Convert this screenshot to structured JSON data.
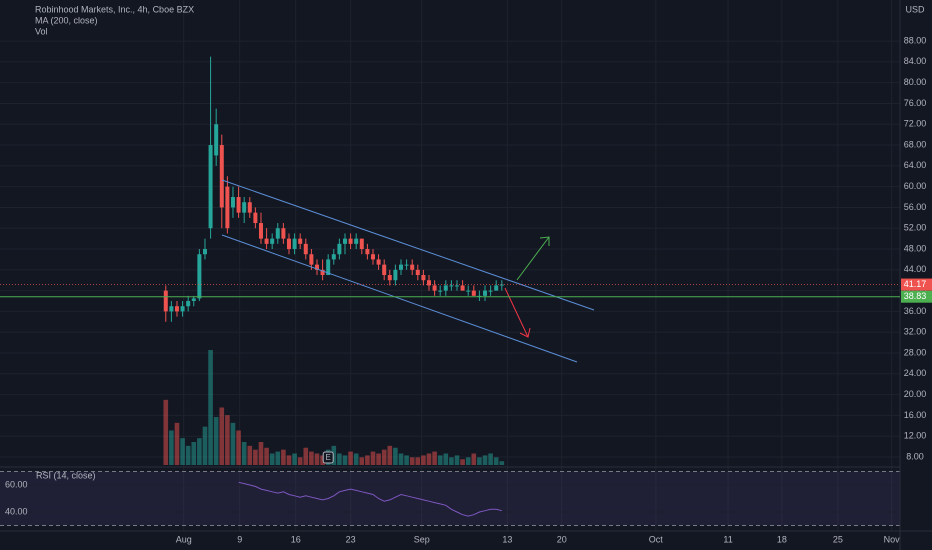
{
  "header": {
    "title": "Robinhood Markets, Inc., 4h, Cboe BZX",
    "indicator": "MA (200, close)",
    "volume_label": "Vol",
    "currency": "USD"
  },
  "chart_data": {
    "type": "candlestick",
    "x": [
      0,
      1,
      2,
      3,
      4,
      5,
      6,
      7,
      8,
      9,
      10,
      11,
      12,
      13,
      14,
      15,
      16,
      17,
      18,
      19,
      20,
      21,
      22,
      23,
      24,
      25,
      26,
      27,
      28,
      29,
      30,
      31,
      32,
      33,
      34,
      35,
      36,
      37,
      38,
      39,
      40,
      41,
      42,
      43,
      44,
      45,
      46,
      47,
      48,
      49,
      50,
      51,
      52,
      53,
      54,
      55,
      56,
      57,
      58,
      59,
      60
    ],
    "open": [
      40,
      36,
      37,
      36,
      37,
      38,
      38.5,
      47,
      52,
      66,
      68,
      60,
      56,
      58,
      55,
      57,
      55,
      53,
      50,
      49,
      50,
      52,
      50,
      48,
      50,
      49,
      47,
      45,
      44,
      43,
      46,
      47,
      49,
      50,
      49,
      50,
      48,
      47,
      46,
      45,
      43,
      42,
      44,
      45,
      45,
      44,
      43,
      42,
      41,
      40,
      40,
      41,
      41,
      41,
      40,
      40,
      39,
      39,
      40,
      40,
      41
    ],
    "high": [
      41,
      38,
      38,
      38,
      39,
      39,
      48,
      50,
      85,
      75,
      70,
      62,
      60,
      60,
      58,
      58,
      56,
      55,
      52,
      51,
      53,
      53,
      51,
      51,
      51,
      50,
      48,
      46,
      46,
      47,
      48,
      50,
      51,
      51,
      51,
      50,
      49,
      48,
      47,
      46,
      44,
      45,
      46,
      46,
      46,
      45,
      44,
      43,
      42,
      41,
      42,
      42,
      42,
      42,
      41,
      41,
      40,
      41,
      41,
      42,
      42
    ],
    "low": [
      34,
      34,
      35,
      35,
      36,
      37,
      38,
      46,
      50,
      64,
      52,
      51,
      54,
      54,
      53,
      54,
      52,
      49,
      48,
      48,
      49,
      49,
      47,
      47,
      48,
      46,
      44,
      43,
      42,
      43,
      45,
      46,
      47,
      48,
      48,
      47,
      46,
      45,
      44,
      42,
      41,
      41,
      43,
      44,
      43,
      42,
      41,
      40,
      39,
      39,
      39,
      40,
      40,
      40,
      39,
      39,
      38,
      38,
      39,
      40,
      40
    ],
    "close": [
      36,
      37,
      36,
      37,
      38,
      38.5,
      47,
      48,
      68,
      72,
      56,
      52,
      58,
      55,
      57,
      55,
      53,
      50,
      49,
      50,
      52,
      50,
      48,
      50,
      49,
      47,
      45,
      44,
      43,
      46,
      47,
      49,
      50,
      49,
      50,
      48,
      47,
      46,
      45,
      43,
      42,
      44,
      45,
      45,
      44,
      43,
      42,
      41,
      40,
      40,
      41,
      41,
      41,
      40,
      40,
      39,
      39,
      40,
      40,
      41,
      41.17
    ],
    "volume": [
      34,
      18,
      22,
      14,
      10,
      12,
      14,
      20,
      60,
      25,
      30,
      26,
      22,
      18,
      12,
      10,
      8,
      12,
      9,
      6,
      7,
      8,
      5,
      6,
      4,
      9,
      7,
      6,
      5,
      8,
      10,
      6,
      5,
      7,
      6,
      4,
      5,
      7,
      6,
      8,
      10,
      9,
      6,
      5,
      4,
      4,
      5,
      6,
      7,
      5,
      6,
      4,
      5,
      3,
      4,
      6,
      4,
      5,
      6,
      4,
      2
    ],
    "up_color": "#26a69a",
    "down_color": "#ef5350",
    "xlim": [
      -29.6,
      131.1
    ],
    "xticks": [
      {
        "value": 3.2,
        "label": "Aug"
      },
      {
        "value": 13.2,
        "label": "9"
      },
      {
        "value": 23.2,
        "label": "16"
      },
      {
        "value": 33,
        "label": "23"
      },
      {
        "value": 45.7,
        "label": "Sep"
      },
      {
        "value": 61,
        "label": "13"
      },
      {
        "value": 70.7,
        "label": "20"
      },
      {
        "value": 87.5,
        "label": "Oct"
      },
      {
        "value": 100.4,
        "label": "11"
      },
      {
        "value": 110,
        "label": "18"
      },
      {
        "value": 120,
        "label": "25"
      },
      {
        "value": 129.6,
        "label": "Nov"
      }
    ],
    "ylim": [
      6.46,
      95.9
    ],
    "yticks": [
      {
        "value": 8,
        "label": "8.00"
      },
      {
        "value": 12,
        "label": "12.00"
      },
      {
        "value": 16,
        "label": "16.00"
      },
      {
        "value": 20,
        "label": "20.00"
      },
      {
        "value": 24,
        "label": "24.00"
      },
      {
        "value": 28,
        "label": "28.00"
      },
      {
        "value": 32,
        "label": "32.00"
      },
      {
        "value": 36,
        "label": "36.00"
      },
      {
        "value": 40,
        "label": "40.00"
      },
      {
        "value": 44,
        "label": "44.00"
      },
      {
        "value": 48,
        "label": "48.00"
      },
      {
        "value": 52,
        "label": "52.00"
      },
      {
        "value": 56,
        "label": "56.00"
      },
      {
        "value": 60,
        "label": "60.00"
      },
      {
        "value": 64,
        "label": "64.00"
      },
      {
        "value": 68,
        "label": "68.00"
      },
      {
        "value": 72,
        "label": "72.00"
      },
      {
        "value": 76,
        "label": "76.00"
      },
      {
        "value": 80,
        "label": "80.00"
      },
      {
        "value": 84,
        "label": "84.00"
      },
      {
        "value": 88,
        "label": "88.00"
      }
    ],
    "horizontal_line": {
      "value": 38.83,
      "color": "#4caf50"
    },
    "earnings_marker": {
      "label": "E",
      "x": 29
    },
    "rsi": {
      "title": "RSI (14, close)",
      "color": "#7e57c2",
      "values": [
        null,
        null,
        null,
        null,
        null,
        null,
        null,
        null,
        null,
        null,
        null,
        null,
        null,
        62,
        61,
        60,
        59,
        57,
        56,
        55,
        54,
        55,
        53,
        52,
        51,
        52,
        51,
        50,
        49,
        50,
        52,
        55,
        56,
        57,
        56,
        55,
        54,
        53,
        50,
        48,
        49,
        51,
        53,
        52,
        51,
        50,
        49,
        48,
        47,
        46,
        45,
        42,
        40,
        38,
        37,
        38,
        40,
        41,
        42,
        42,
        41
      ],
      "ylim": [
        26.7,
        71.1
      ],
      "yticks": [
        {
          "value": 40,
          "label": "40.00"
        },
        {
          "value": 60,
          "label": "60.00"
        }
      ],
      "bands": [
        30,
        70
      ]
    }
  }
}
